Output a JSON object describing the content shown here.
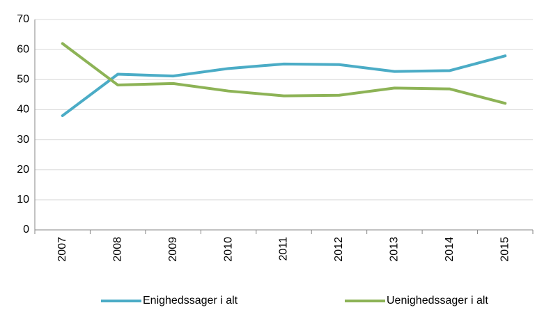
{
  "chart_data": {
    "type": "line",
    "categories": [
      "2007",
      "2008",
      "2009",
      "2010",
      "2011",
      "2012",
      "2013",
      "2014",
      "2015"
    ],
    "series": [
      {
        "name": "Enighedssager i alt",
        "color": "#4bacc6",
        "values": [
          38,
          51.8,
          51.2,
          53.7,
          55.2,
          55.0,
          52.7,
          53.0,
          57.9
        ]
      },
      {
        "name": "Uenighedssager i alt",
        "color": "#8db356",
        "values": [
          62,
          48.2,
          48.7,
          46.2,
          44.6,
          44.8,
          47.2,
          46.9,
          42.1
        ]
      }
    ],
    "ylim": [
      0,
      70
    ],
    "yticks": [
      0,
      10,
      20,
      30,
      40,
      50,
      60,
      70
    ],
    "grid": true,
    "legend": "bottom"
  }
}
